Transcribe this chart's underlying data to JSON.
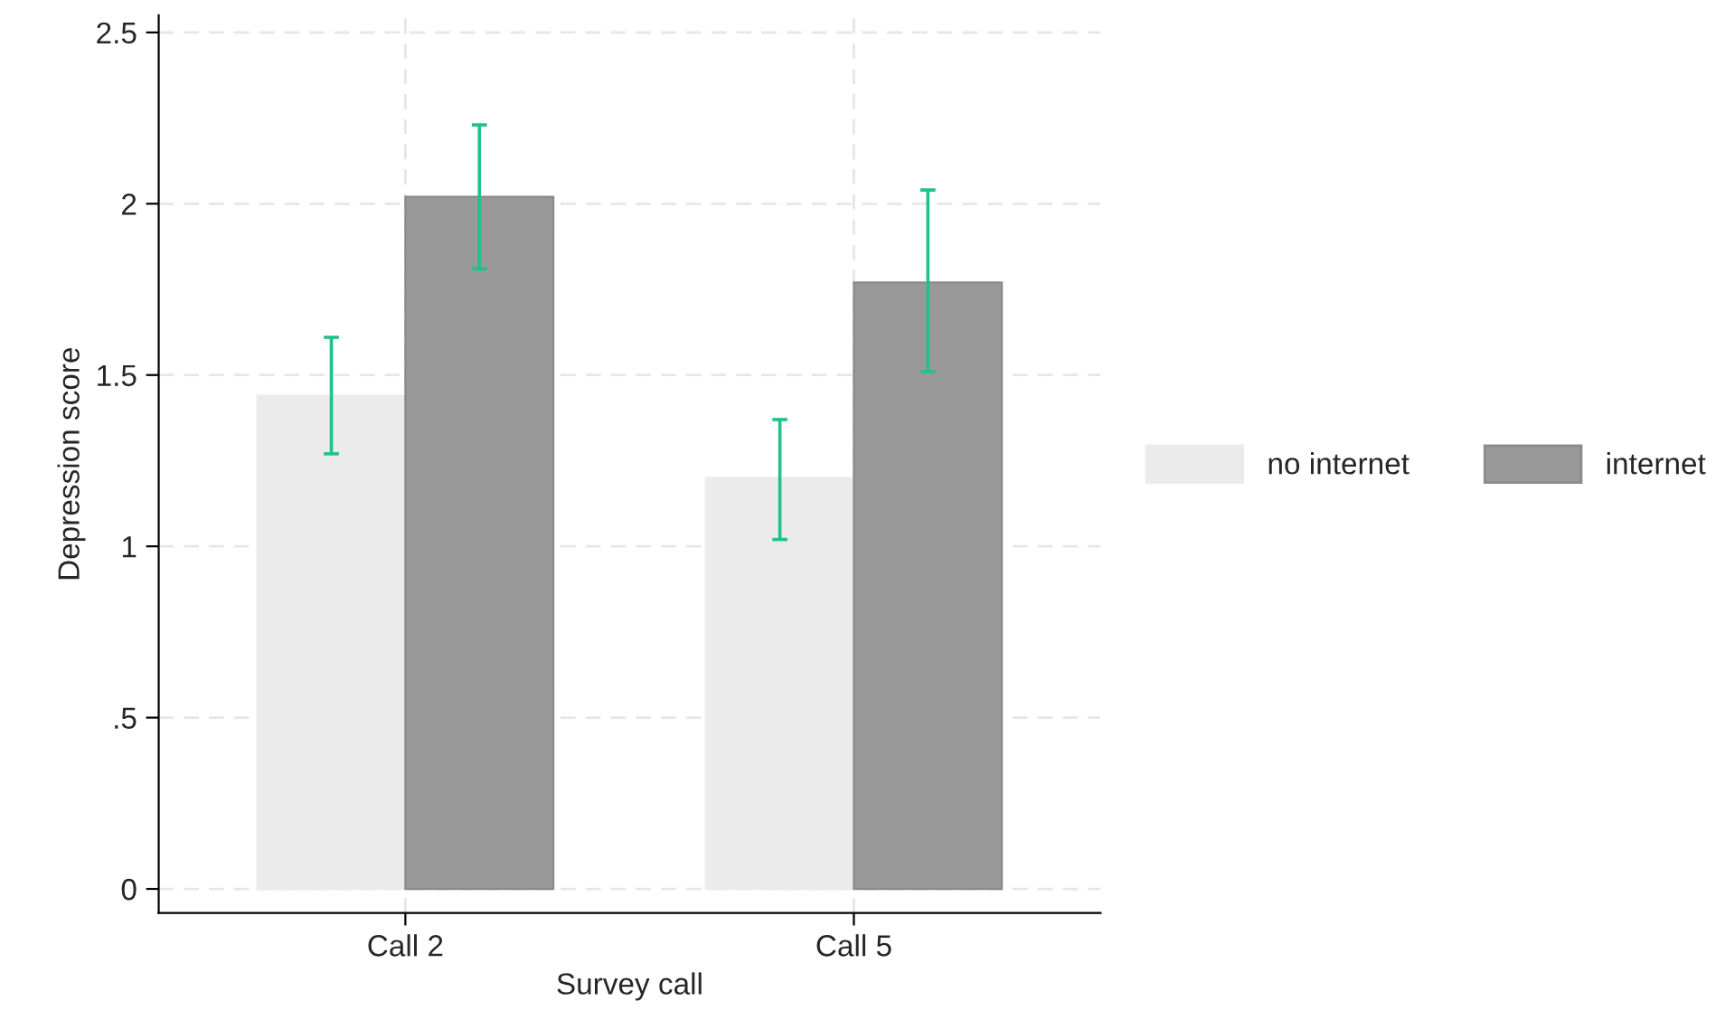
{
  "chart_data": {
    "type": "bar",
    "xlabel": "Survey call",
    "ylabel": "Depression score",
    "categories": [
      "Call 2",
      "Call 5"
    ],
    "series": [
      {
        "name": "no internet",
        "color": "#ebebeb",
        "values": [
          1.44,
          1.2
        ],
        "errors": [
          [
            1.27,
            1.61
          ],
          [
            1.02,
            1.37
          ]
        ]
      },
      {
        "name": "internet",
        "color": "#999999",
        "values": [
          2.02,
          1.77
        ],
        "errors": [
          [
            1.81,
            2.23
          ],
          [
            1.51,
            2.04
          ]
        ]
      }
    ],
    "ylim": [
      -0.07,
      2.55
    ],
    "yticks": [
      0,
      {
        "value": 0.5,
        "label": ".5"
      },
      1,
      1.5,
      2,
      2.5
    ],
    "grid": true,
    "legend": "right"
  }
}
